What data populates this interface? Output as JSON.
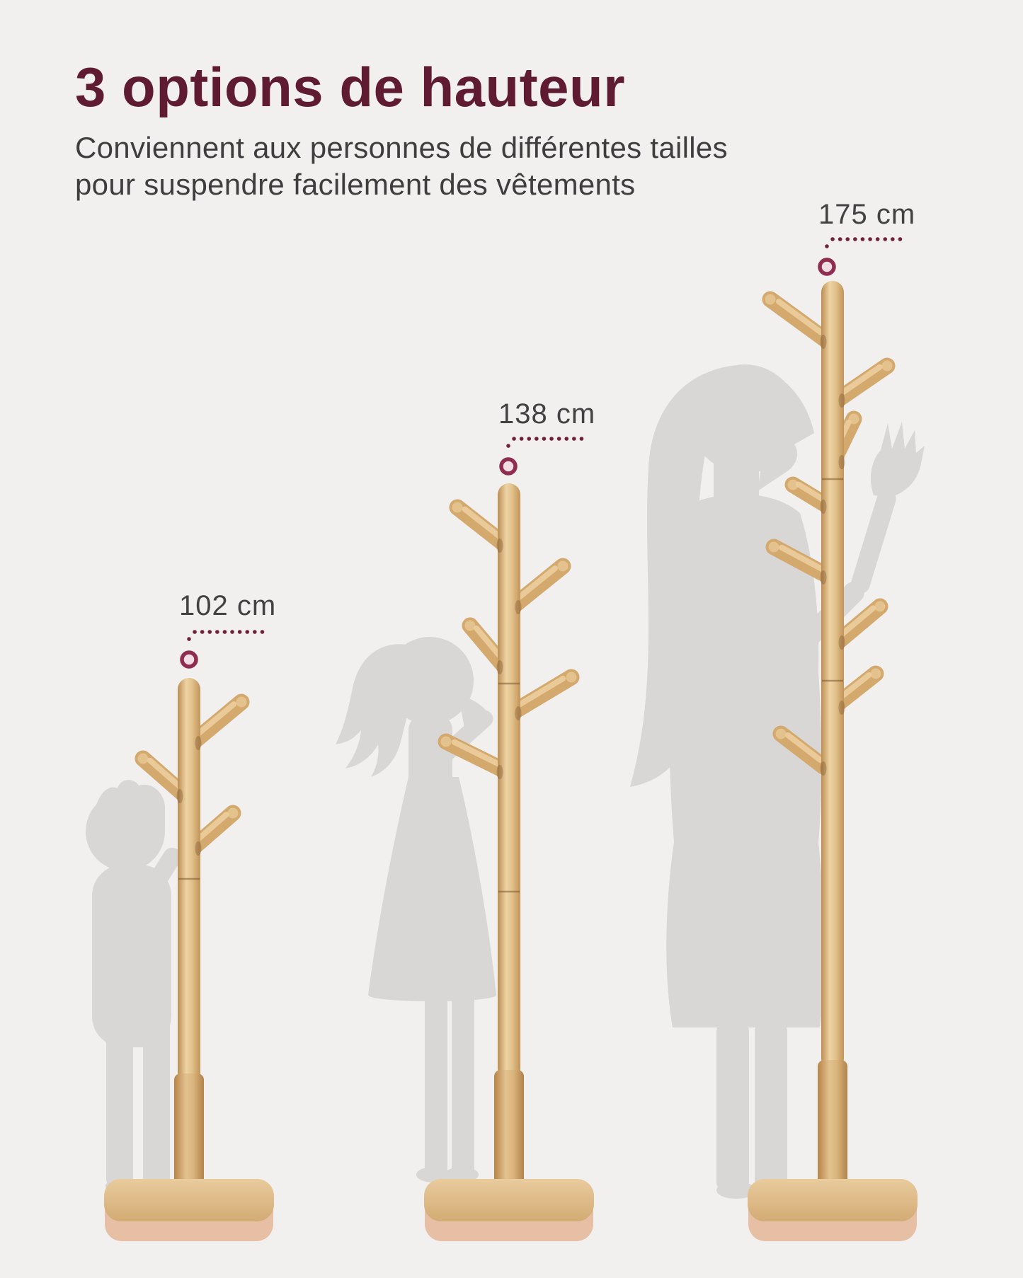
{
  "header": {
    "title": "3 options de hauteur",
    "subtitle_line1": "Conviennent aux personnes de différentes tailles",
    "subtitle_line2": "pour suspendre facilement des vêtements"
  },
  "racks": [
    {
      "id": "small",
      "height_label": "102 cm",
      "height_cm": 102,
      "silhouette": "boy-child"
    },
    {
      "id": "medium",
      "height_label": "138 cm",
      "height_cm": 138,
      "silhouette": "girl-child"
    },
    {
      "id": "tall",
      "height_label": "175 cm",
      "height_cm": 175,
      "silhouette": "adult-woman"
    }
  ],
  "colors": {
    "background": "#f1f0ee",
    "title_text": "#5f1b31",
    "body_text": "#3f3d3e",
    "label_text": "#434142",
    "accent_dots": "#71203c",
    "marker_ring": "#8e2d50",
    "marker_fill": "#f2dde4",
    "silhouette": "#d8d7d5",
    "wood_light": "#ecd0a0",
    "wood_mid": "#d4a96e",
    "wood_dark": "#bd8e54",
    "base_side": "#e7bfa4"
  }
}
